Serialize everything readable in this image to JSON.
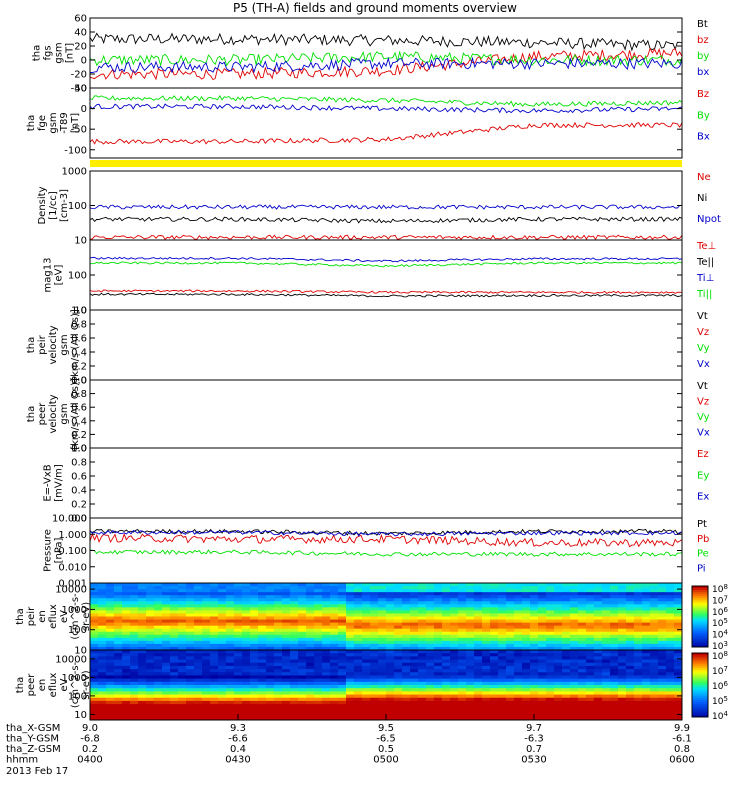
{
  "title": "P5 (TH-A) fields and ground moments overview",
  "colors": {
    "black": "#000000",
    "red": "#e00000",
    "green": "#00e000",
    "blue": "#0000cc",
    "yellow": "#ffee00",
    "frame": "#000000"
  },
  "panels": [
    {
      "ylabel": [
        "tha",
        "fgs",
        "gsm",
        "[nT]"
      ],
      "scale": "linear",
      "yrange": [
        -40,
        60
      ],
      "ticks": [
        "60",
        "40",
        "20",
        "0",
        "-20",
        "-40"
      ],
      "legend": [
        {
          "text": "Bt",
          "color": "black"
        },
        {
          "text": "bz",
          "color": "red"
        },
        {
          "text": "by",
          "color": "green"
        },
        {
          "text": "bx",
          "color": "blue"
        }
      ]
    },
    {
      "ylabel": [
        "tha",
        "fge",
        "gsm",
        "-T89",
        "[nT]"
      ],
      "scale": "linear",
      "yrange": [
        -120,
        50
      ],
      "ticks": [
        "50",
        "0",
        "-50",
        "-100"
      ],
      "legend": [
        {
          "text": "Bz",
          "color": "red"
        },
        {
          "text": "By",
          "color": "green"
        },
        {
          "text": "Bx",
          "color": "blue"
        }
      ]
    },
    {
      "ylabel": [
        "Density",
        "[1/cc]",
        "[cm-3]"
      ],
      "scale": "log",
      "yrange": [
        10,
        1000
      ],
      "ticks": [
        "1000",
        "100",
        "10"
      ],
      "legend": [
        {
          "text": "Ne",
          "color": "red"
        },
        {
          "text": "Ni",
          "color": "black"
        },
        {
          "text": "Npot",
          "color": "blue"
        }
      ]
    },
    {
      "ylabel": [
        "mag13",
        "[eV]"
      ],
      "scale": "log",
      "yrange": [
        10,
        1000
      ],
      "ticks": [
        "100",
        "10"
      ],
      "legend": [
        {
          "text": "Te⊥",
          "color": "red"
        },
        {
          "text": "Te||",
          "color": "black"
        },
        {
          "text": "Ti⊥",
          "color": "blue"
        },
        {
          "text": "Ti||",
          "color": "green"
        }
      ]
    },
    {
      "ylabel": [
        "tha",
        "peir",
        "velocity",
        "gsm",
        "[km/s (All Qs)]"
      ],
      "scale": "linear",
      "yrange": [
        0,
        1
      ],
      "ticks": [
        "1.0",
        "0.8",
        "0.6",
        "0.4",
        "0.2",
        "0.0"
      ],
      "legend": [
        {
          "text": "Vt",
          "color": "black"
        },
        {
          "text": "Vz",
          "color": "red"
        },
        {
          "text": "Vy",
          "color": "green"
        },
        {
          "text": "Vx",
          "color": "blue"
        }
      ]
    },
    {
      "ylabel": [
        "tha",
        "peer",
        "velocity",
        "gsm",
        "[km/s (All Qs)]"
      ],
      "scale": "linear",
      "yrange": [
        0,
        1
      ],
      "ticks": [
        "1.0",
        "0.8",
        "0.6",
        "0.4",
        "0.2",
        "0.0"
      ],
      "legend": [
        {
          "text": "Vt",
          "color": "black"
        },
        {
          "text": "Vz",
          "color": "red"
        },
        {
          "text": "Vy",
          "color": "green"
        },
        {
          "text": "Vx",
          "color": "blue"
        }
      ]
    },
    {
      "ylabel": [
        "E=-VxB",
        "[mV/m]"
      ],
      "scale": "linear",
      "yrange": [
        0,
        1
      ],
      "ticks": [
        "1.0",
        "0.8",
        "0.6",
        "0.4",
        "0.2",
        "0.0"
      ],
      "legend": [
        {
          "text": "Ez",
          "color": "red"
        },
        {
          "text": "Ey",
          "color": "green"
        },
        {
          "text": "Ex",
          "color": "blue"
        }
      ]
    },
    {
      "ylabel": [
        "Pressure",
        "[nPa]"
      ],
      "scale": "log",
      "yrange": [
        0.001,
        10
      ],
      "ticks": [
        "10.000",
        "1.000",
        "0.100",
        "0.010",
        "0.001"
      ],
      "legend": [
        {
          "text": "Pt",
          "color": "black"
        },
        {
          "text": "Pb",
          "color": "red"
        },
        {
          "text": "Pe",
          "color": "green"
        },
        {
          "text": "Pi",
          "color": "blue"
        }
      ]
    },
    {
      "ylabel": [
        "tha",
        "peir",
        "en",
        "eflux",
        "eV",
        "(cm^2-s-",
        "sr-eV)"
      ],
      "scale": "log",
      "yrange": [
        10,
        20000
      ],
      "ticks": [
        "10000",
        "1000",
        "100",
        "10"
      ],
      "colorbar": [
        "10^8",
        "10^7",
        "10^6",
        "10^5",
        "10^4",
        "10^3"
      ]
    },
    {
      "ylabel": [
        "tha",
        "peer",
        "en",
        "eflux",
        "eV",
        "(cm^2-s-",
        "sr-eV)"
      ],
      "scale": "log",
      "yrange": [
        5,
        30000
      ],
      "ticks": [
        "10000",
        "1000",
        "100",
        "10"
      ],
      "colorbar": [
        "10^8",
        "10^7",
        "10^6",
        "10^5",
        "10^4"
      ]
    }
  ],
  "xaxis": {
    "rows": [
      {
        "label": "tha_X-GSM",
        "values": [
          "9.0",
          "9.3",
          "9.5",
          "9.7",
          "9.9"
        ]
      },
      {
        "label": "tha_Y-GSM",
        "values": [
          "-6.8",
          "-6.6",
          "-6.5",
          "-6.3",
          "-6.1"
        ]
      },
      {
        "label": "tha_Z-GSM",
        "values": [
          "0.2",
          "0.4",
          "0.5",
          "0.7",
          "0.8"
        ]
      },
      {
        "label": "hhmm",
        "values": [
          "0400",
          "0430",
          "0500",
          "0530",
          "0600"
        ]
      }
    ],
    "date": "2013 Feb 17"
  },
  "chart_data": [
    {
      "type": "line",
      "title": "P5 (TH-A) fields and ground moments overview",
      "ylabel": "tha fgs gsm [nT]",
      "ylim": [
        -40,
        60
      ],
      "x": [
        "0400",
        "0430",
        "0500",
        "0530",
        "0600"
      ],
      "series": [
        {
          "name": "Bt",
          "values": [
            30,
            30,
            28,
            25,
            20
          ]
        },
        {
          "name": "bz",
          "values": [
            -20,
            -20,
            -15,
            5,
            10
          ]
        },
        {
          "name": "by",
          "values": [
            0,
            0,
            5,
            0,
            0
          ]
        },
        {
          "name": "bx",
          "values": [
            -10,
            -10,
            -5,
            -5,
            -5
          ]
        }
      ]
    },
    {
      "type": "line",
      "ylabel": "tha fge gsm -T89 [nT]",
      "ylim": [
        -120,
        50
      ],
      "x": [
        "0400",
        "0430",
        "0500",
        "0530",
        "0600"
      ],
      "series": [
        {
          "name": "Bz",
          "values": [
            -80,
            -80,
            -75,
            -40,
            -40
          ]
        },
        {
          "name": "By",
          "values": [
            25,
            25,
            20,
            10,
            15
          ]
        },
        {
          "name": "Bx",
          "values": [
            5,
            5,
            0,
            -5,
            0
          ]
        }
      ]
    },
    {
      "type": "line",
      "ylabel": "Density [1/cc] [cm-3]",
      "ylim": [
        10,
        1000
      ],
      "x": [
        "0400",
        "0430",
        "0500",
        "0530",
        "0600"
      ],
      "series": [
        {
          "name": "Ne",
          "values": [
            12,
            12,
            12,
            12,
            12
          ]
        },
        {
          "name": "Ni",
          "values": [
            40,
            40,
            35,
            40,
            40
          ]
        },
        {
          "name": "Npot",
          "values": [
            90,
            90,
            90,
            90,
            90
          ]
        }
      ]
    },
    {
      "type": "line",
      "ylabel": "mag13 [eV]",
      "ylim": [
        10,
        1000
      ],
      "x": [
        "0400",
        "0430",
        "0500",
        "0530",
        "0600"
      ],
      "series": [
        {
          "name": "Te⊥",
          "values": [
            35,
            35,
            32,
            32,
            32
          ]
        },
        {
          "name": "Te||",
          "values": [
            28,
            28,
            25,
            26,
            26
          ]
        },
        {
          "name": "Ti⊥",
          "values": [
            300,
            300,
            250,
            290,
            290
          ]
        },
        {
          "name": "Ti||",
          "values": [
            220,
            220,
            180,
            220,
            220
          ]
        }
      ]
    },
    {
      "type": "line",
      "ylabel": "Pressure [nPa]",
      "ylim": [
        0.001,
        10
      ],
      "x": [
        "0400",
        "0430",
        "0500",
        "0530",
        "0600"
      ],
      "series": [
        {
          "name": "Pt",
          "values": [
            1.5,
            1.5,
            1.1,
            1.5,
            1.5
          ]
        },
        {
          "name": "Pb",
          "values": [
            0.6,
            0.5,
            0.5,
            0.3,
            0.3
          ]
        },
        {
          "name": "Pe",
          "values": [
            0.08,
            0.08,
            0.06,
            0.06,
            0.06
          ]
        },
        {
          "name": "Pi",
          "values": [
            1.3,
            1.3,
            1.0,
            1.2,
            1.2
          ]
        }
      ]
    },
    {
      "type": "heatmap",
      "ylabel": "tha peir en eflux eV (cm^2-s-sr-eV)",
      "ylim": [
        10,
        20000
      ],
      "x": [
        "0400",
        "0430",
        "0500",
        "0530",
        "0600"
      ]
    },
    {
      "type": "heatmap",
      "ylabel": "tha peer en eflux eV (cm^2-s-sr-eV)",
      "ylim": [
        5,
        30000
      ],
      "x": [
        "0400",
        "0430",
        "0500",
        "0530",
        "0600"
      ]
    }
  ]
}
